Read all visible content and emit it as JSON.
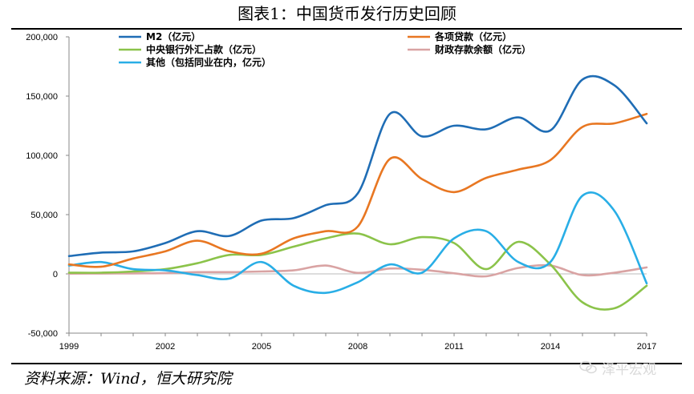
{
  "page": {
    "title": "图表1：中国货币发行历史回顾",
    "source": "资料来源：Wind，恒大研究院",
    "watermark": "泽平宏观"
  },
  "chart_data": {
    "type": "line",
    "title": "图表1：中国货币发行历史回顾",
    "xlabel": "",
    "ylabel": "",
    "xlim": [
      1999,
      2017
    ],
    "ylim": [
      -50000,
      200000
    ],
    "x_ticks": [
      1999,
      2002,
      2005,
      2008,
      2011,
      2014,
      2017
    ],
    "y_ticks": [
      -50000,
      0,
      50000,
      100000,
      150000,
      200000
    ],
    "y_tick_labels": [
      "-50,000",
      "0",
      "50,000",
      "100,000",
      "150,000",
      "200,000"
    ],
    "x": [
      1999,
      2000,
      2001,
      2002,
      2003,
      2004,
      2005,
      2006,
      2007,
      2008,
      2009,
      2010,
      2011,
      2012,
      2013,
      2014,
      2015,
      2016,
      2017
    ],
    "series": [
      {
        "name": "M2（亿元）",
        "color": "#1f6db5",
        "values": [
          15000,
          18000,
          19000,
          26000,
          36000,
          32000,
          45000,
          47000,
          58000,
          68000,
          135000,
          116000,
          125000,
          122000,
          132000,
          121000,
          164000,
          159000,
          127000
        ]
      },
      {
        "name": "各项贷款（亿元）",
        "color": "#e87722",
        "values": [
          8000,
          6000,
          13000,
          19000,
          28000,
          19000,
          17000,
          30000,
          36000,
          40000,
          97000,
          80000,
          69000,
          81000,
          88000,
          96000,
          124000,
          127000,
          135000
        ]
      },
      {
        "name": "中央银行外汇占款（亿元）",
        "color": "#8bc34a",
        "values": [
          1000,
          1000,
          2000,
          4000,
          9000,
          16000,
          16000,
          23000,
          30000,
          34000,
          25000,
          31000,
          26000,
          4000,
          27000,
          8000,
          -24000,
          -29000,
          -10000
        ]
      },
      {
        "name": "财政存款余额（亿元）",
        "color": "#d9a3a3",
        "values": [
          200,
          300,
          400,
          600,
          1500,
          1500,
          2000,
          3000,
          7000,
          800,
          4500,
          3500,
          500,
          -2000,
          5000,
          7000,
          -1000,
          1000,
          5500
        ]
      },
      {
        "name": "其他（包括同业在内，亿元）",
        "color": "#29aee6",
        "values": [
          7000,
          10000,
          4000,
          3000,
          -1000,
          -4000,
          10000,
          -10000,
          -16000,
          -7000,
          8000,
          1000,
          30000,
          36000,
          10000,
          10000,
          66000,
          53000,
          -8000
        ]
      }
    ],
    "legend_position": "top"
  }
}
